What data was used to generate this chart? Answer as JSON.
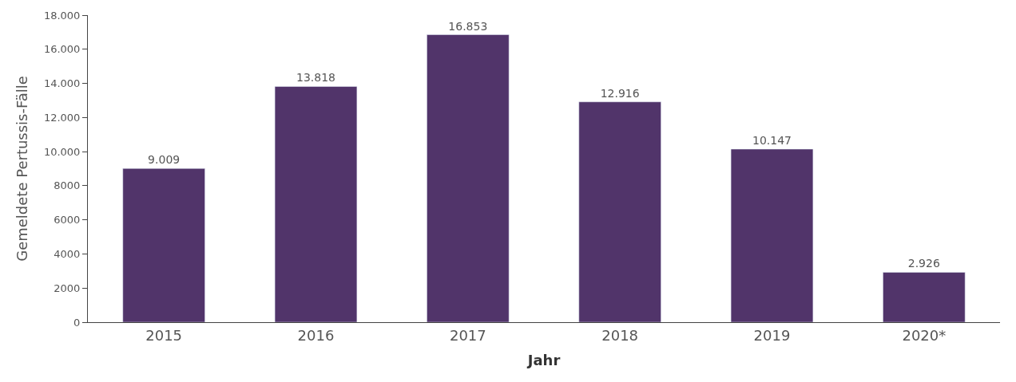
{
  "chart_data": {
    "type": "bar",
    "xlabel": "Jahr",
    "ylabel": "Gemeldete Pertussis-Fälle",
    "categories": [
      "2015",
      "2016",
      "2017",
      "2018",
      "2019",
      "2020*"
    ],
    "values": [
      9009,
      13818,
      16853,
      12916,
      10147,
      2926
    ],
    "value_labels": [
      "9.009",
      "13.818",
      "16.853",
      "12.916",
      "10.147",
      "2.926"
    ],
    "color": "#51346a",
    "ylim": [
      0,
      18000
    ],
    "yticks": [
      0,
      2000,
      4000,
      6000,
      8000,
      {
        "value": 10000,
        "label": "10.000"
      },
      {
        "value": 12000,
        "label": "12.000"
      },
      {
        "value": 14000,
        "label": "14.000"
      },
      {
        "value": 16000,
        "label": "16.000"
      },
      {
        "value": 18000,
        "label": "18.000"
      }
    ],
    "legend": false
  }
}
